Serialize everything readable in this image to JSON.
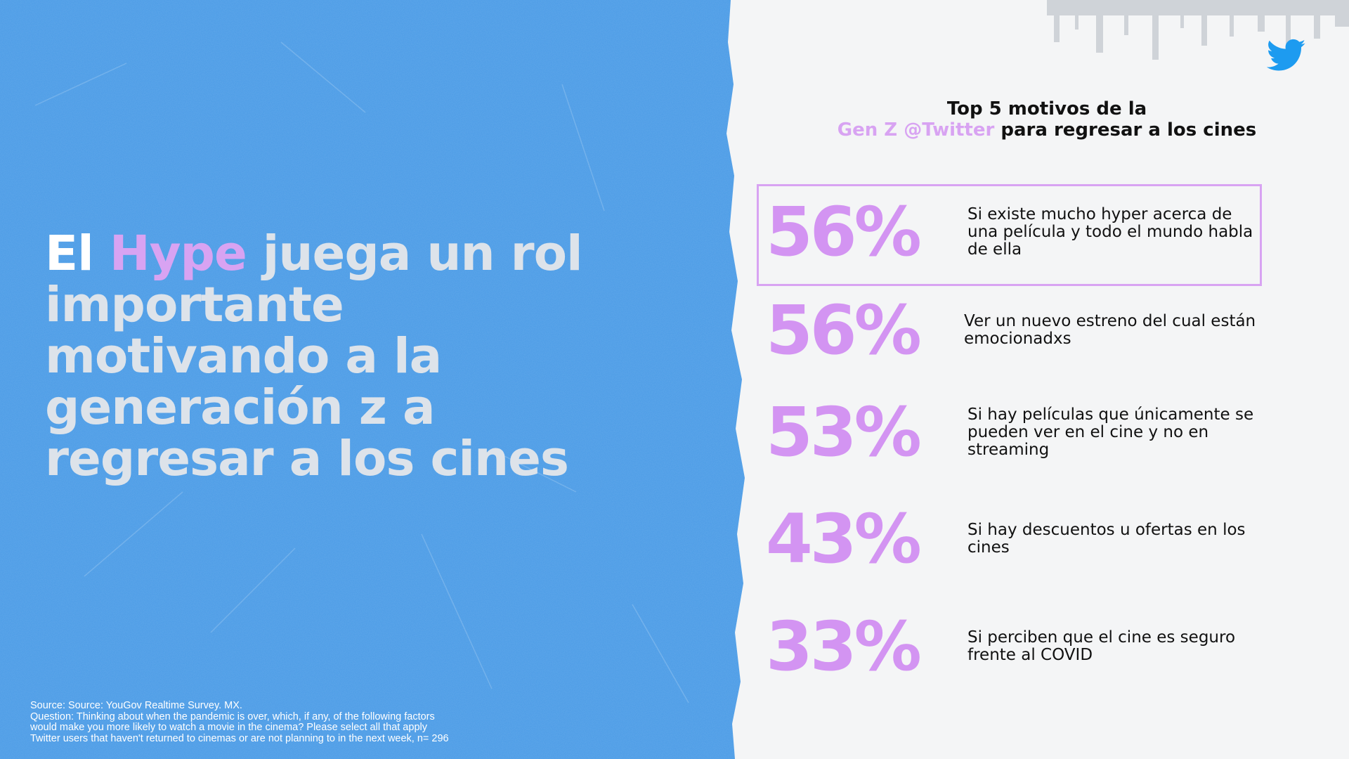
{
  "headline": {
    "word_white": "El",
    "word_accent": "Hype",
    "line1_rest": "juega un rol",
    "line2": "importante",
    "line3": "motivando a la",
    "line4": "generación z a",
    "line5": "regresar a los cines"
  },
  "chart_title": {
    "line1": "Top 5 motivos de la",
    "accent": "Gen Z @Twitter",
    "line2_rest": "para regresar a los cines"
  },
  "chart_data": {
    "type": "table",
    "title": "Top 5 motivos de la Gen Z @Twitter para regresar a los cines",
    "rows": [
      {
        "value": 56,
        "display": "56%",
        "label": "Si existe mucho hyper acerca de una película y todo el mundo habla de ella",
        "highlighted": true
      },
      {
        "value": 56,
        "display": "56%",
        "label": "Ver un nuevo estreno del cual están emocionadxs",
        "highlighted": false
      },
      {
        "value": 53,
        "display": "53%",
        "label": "Si hay películas que únicamente se pueden ver en el cine y no en streaming",
        "highlighted": false
      },
      {
        "value": 43,
        "display": "43%",
        "label": "Si hay descuentos u ofertas en los cines",
        "highlighted": false
      },
      {
        "value": 33,
        "display": "33%",
        "label": "Si perciben que el cine es seguro frente al COVID",
        "highlighted": false
      }
    ]
  },
  "source": {
    "line1": "Source: Source: YouGov Realtime Survey. MX.",
    "line2": "Question: Thinking about when the pandemic is over, which, if any, of the following factors",
    "line3": "would make you more likely to watch a movie in the cinema? Please select all that apply",
    "line4": "Twitter users that haven't returned to cinemas or are not planning to in the next week, n= 296"
  },
  "icons": {
    "logo": "twitter-bird-icon"
  },
  "colors": {
    "left_bg": "#4a9be6",
    "right_bg": "#f4f5f6",
    "accent": "#d8a3f2",
    "percent": "#d394f2",
    "headline_text": "#dde3ea",
    "twitter_blue": "#1d9bf0"
  }
}
